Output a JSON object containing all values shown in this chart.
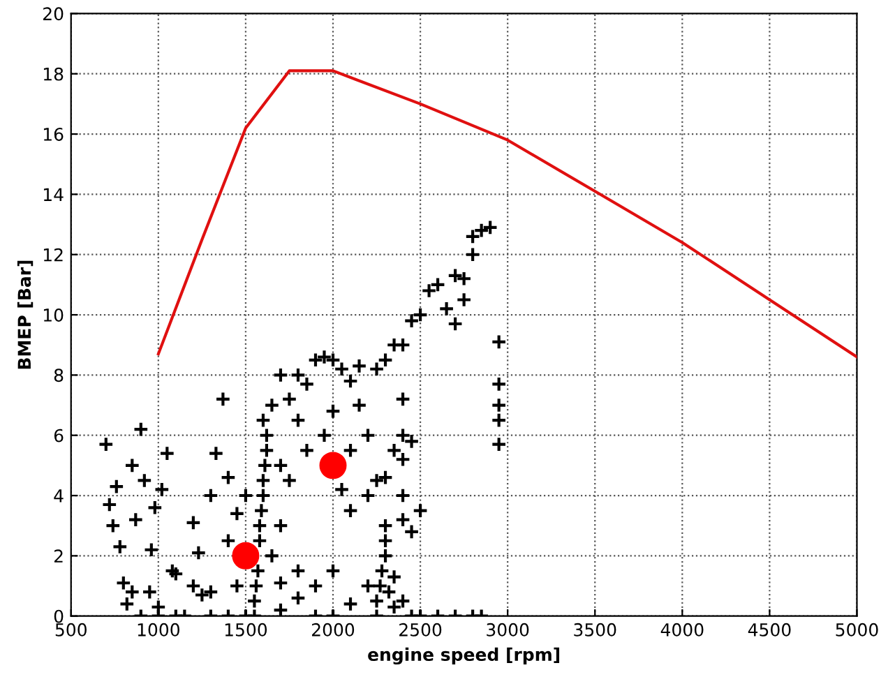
{
  "chart_data": {
    "type": "scatter",
    "xlabel": "engine speed [rpm]",
    "ylabel": "BMEP [Bar]",
    "xlim": [
      500,
      5000
    ],
    "ylim": [
      0,
      20
    ],
    "xticks": [
      500,
      1000,
      1500,
      2000,
      2500,
      3000,
      3500,
      4000,
      4500,
      5000
    ],
    "yticks": [
      0,
      2,
      4,
      6,
      8,
      10,
      12,
      14,
      16,
      18,
      20
    ],
    "grid": true,
    "series": [
      {
        "color": "#000000",
        "marker": "cross",
        "x": [
          700,
          720,
          740,
          760,
          780,
          800,
          820,
          850,
          870,
          900,
          920,
          950,
          960,
          980,
          1000,
          1020,
          1050,
          1080,
          1100,
          1150,
          1200,
          1200,
          1230,
          1300,
          1300,
          1330,
          1370,
          1400,
          1400,
          1450,
          1450,
          1500,
          1500,
          1550,
          1550,
          1560,
          1570,
          1580,
          1580,
          1590,
          1600,
          1600,
          1610,
          1620,
          1600,
          1650,
          1620,
          1650,
          1700,
          1700,
          1700,
          1750,
          1750,
          1800,
          1800,
          1850,
          1850,
          1900,
          1950,
          1950,
          2000,
          2000,
          2050,
          2050,
          2100,
          2100,
          2100,
          2150,
          2200,
          2200,
          2250,
          2300,
          2400,
          2450,
          2500,
          2350,
          2400,
          2400,
          2150,
          2250,
          2300,
          2350,
          2400,
          2450,
          2500,
          2550,
          2600,
          2700,
          2750,
          2650,
          2800,
          2850,
          2900,
          2800,
          2750,
          2700,
          2950,
          2950,
          2950,
          2950,
          2950,
          2400,
          2400,
          2450,
          2250,
          2250,
          2270,
          2280,
          2300,
          2300,
          2300,
          2320,
          2350,
          2350,
          2200,
          2400,
          2450,
          2500,
          2600,
          2700,
          2800,
          2850,
          2000,
          1900,
          1800,
          1700,
          1400,
          1000,
          900,
          850,
          2000,
          1900,
          2100,
          1700,
          1800,
          1300,
          1100,
          1250
        ],
        "values": [
          5.7,
          3.7,
          3.0,
          4.3,
          2.3,
          1.1,
          0.4,
          5.0,
          3.2,
          6.2,
          4.5,
          0.8,
          2.2,
          3.6,
          0.3,
          4.2,
          5.4,
          1.5,
          0,
          0,
          1.0,
          3.1,
          2.1,
          0,
          4.0,
          5.4,
          7.2,
          2.5,
          4.6,
          3.4,
          1.0,
          0,
          4.0,
          0,
          0.5,
          1.0,
          1.5,
          2.5,
          3.0,
          3.5,
          4.0,
          4.5,
          5.0,
          5.5,
          6.5,
          7.0,
          6.0,
          2.0,
          3.0,
          5.0,
          8.0,
          7.2,
          4.5,
          6.5,
          8.0,
          7.7,
          5.5,
          8.5,
          8.6,
          6.0,
          8.5,
          6.8,
          8.2,
          4.2,
          7.8,
          5.5,
          3.5,
          7.0,
          6.0,
          4.0,
          4.5,
          4.6,
          4.0,
          2.8,
          3.5,
          5.5,
          6.0,
          7.2,
          8.3,
          8.2,
          8.5,
          9.0,
          9.0,
          9.8,
          10.0,
          10.8,
          11.0,
          11.3,
          11.2,
          10.2,
          12.6,
          12.8,
          12.9,
          12.0,
          10.5,
          9.7,
          9.1,
          7.7,
          7.0,
          6.5,
          5.7,
          5.2,
          3.2,
          5.8,
          0,
          0.5,
          1.0,
          1.5,
          2.0,
          2.5,
          3.0,
          0.8,
          0.3,
          1.3,
          1.0,
          0.5,
          0,
          0,
          0,
          0,
          0,
          0,
          0,
          0,
          0.6,
          0.2,
          0,
          0,
          0,
          0.8,
          1.5,
          1.0,
          0.4,
          1.1,
          1.5,
          0.8,
          1.4,
          0.7
        ]
      },
      {
        "type": "line",
        "color": "#e01010",
        "marker": "none",
        "x": [
          1000,
          1250,
          1500,
          1750,
          2000,
          2500,
          3000,
          3500,
          4000,
          4500,
          5000
        ],
        "values": [
          8.7,
          12.5,
          16.2,
          18.1,
          18.1,
          17.0,
          15.8,
          14.1,
          12.4,
          10.5,
          8.6
        ]
      },
      {
        "type": "scatter",
        "color": "#ff0000",
        "marker": "circle",
        "x": [
          1500,
          2000
        ],
        "values": [
          2.0,
          5.0
        ]
      }
    ]
  }
}
